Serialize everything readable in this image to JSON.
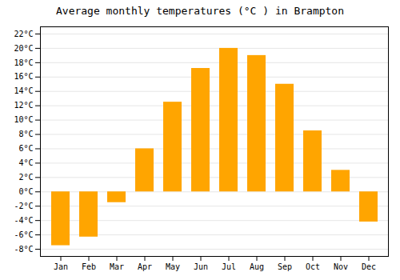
{
  "chart_data": {
    "type": "bar",
    "title": "Average monthly temperatures (°C ) in Brampton",
    "categories": [
      "Jan",
      "Feb",
      "Mar",
      "Apr",
      "May",
      "Jun",
      "Jul",
      "Aug",
      "Sep",
      "Oct",
      "Nov",
      "Dec"
    ],
    "values": [
      -7.5,
      -6.3,
      -1.5,
      6.0,
      12.5,
      17.2,
      20.0,
      19.0,
      15.0,
      8.5,
      3.0,
      -4.2
    ],
    "color": "#FFA500",
    "ylim": [
      -9,
      23
    ],
    "yticks": [
      {
        "value": -8,
        "label": "-8°C"
      },
      {
        "value": -6,
        "label": "-6°C"
      },
      {
        "value": -4,
        "label": "-4°C"
      },
      {
        "value": -2,
        "label": "-2°C"
      },
      {
        "value": 0,
        "label": "0°C"
      },
      {
        "value": 2,
        "label": "2°C"
      },
      {
        "value": 4,
        "label": "4°C"
      },
      {
        "value": 6,
        "label": "6°C"
      },
      {
        "value": 8,
        "label": "8°C"
      },
      {
        "value": 10,
        "label": "10°C"
      },
      {
        "value": 12,
        "label": "12°C"
      },
      {
        "value": 14,
        "label": "14°C"
      },
      {
        "value": 16,
        "label": "16°C"
      },
      {
        "value": 18,
        "label": "18°C"
      },
      {
        "value": 20,
        "label": "20°C"
      },
      {
        "value": 22,
        "label": "22°C"
      }
    ],
    "grid": true
  }
}
